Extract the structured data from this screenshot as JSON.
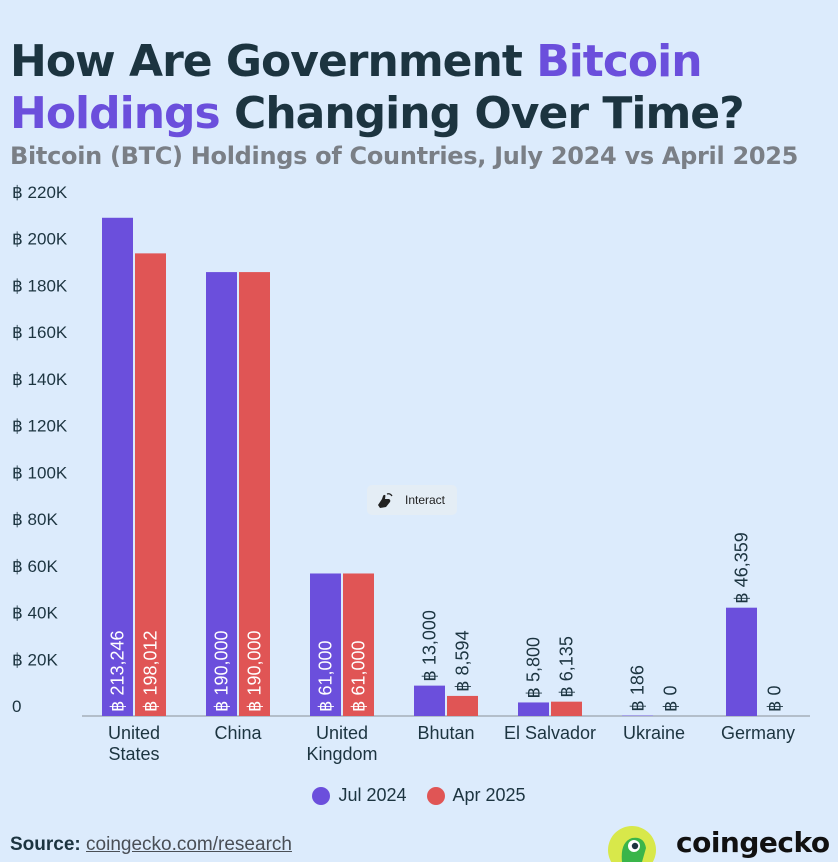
{
  "title": {
    "part1": "How Are Government ",
    "highlight1": "Bitcoin",
    "highlight2": "Holdings",
    "part2": " Changing Over Time?"
  },
  "subtitle": "Bitcoin (BTC) Holdings of Countries, July 2024 vs April 2025",
  "interact_label": "Interact",
  "source": {
    "label": "Source:",
    "link": "coingecko.com/research"
  },
  "logo": {
    "text": "coingecko",
    "icon": "gecko-logo-icon"
  },
  "colors": {
    "jul": "#6b4fdc",
    "apr": "#e05555",
    "text": "#1c3440",
    "accent": "#6b4fdc"
  },
  "chart_data": {
    "type": "bar",
    "title": "",
    "xlabel": "",
    "ylabel": "",
    "ylim": [
      0,
      220000
    ],
    "y_ticks": [
      "0",
      "฿ 20K",
      "฿ 40K",
      "฿ 60K",
      "฿ 80K",
      "฿ 100K",
      "฿ 120K",
      "฿ 140K",
      "฿ 160K",
      "฿ 180K",
      "฿ 200K",
      "฿ 220K"
    ],
    "y_tick_values": [
      0,
      20000,
      40000,
      60000,
      80000,
      100000,
      120000,
      140000,
      160000,
      180000,
      200000,
      220000
    ],
    "categories": [
      [
        "United",
        "States"
      ],
      [
        "China"
      ],
      [
        "United",
        "Kingdom"
      ],
      [
        "Bhutan"
      ],
      [
        "El Salvador"
      ],
      [
        "Ukraine"
      ],
      [
        "Germany"
      ]
    ],
    "series": [
      {
        "name": "Jul 2024",
        "values": [
          213246,
          190000,
          61000,
          13000,
          5800,
          186,
          46359
        ],
        "labels": [
          "฿ 213,246",
          "฿ 190,000",
          "฿ 61,000",
          "฿ 13,000",
          "฿ 5,800",
          "฿ 186",
          "฿ 46,359"
        ]
      },
      {
        "name": "Apr 2025",
        "values": [
          198012,
          190000,
          61000,
          8594,
          6135,
          0,
          0
        ],
        "labels": [
          "฿ 198,012",
          "฿ 190,000",
          "฿ 61,000",
          "฿ 8,594",
          "฿ 6,135",
          "฿ 0",
          "฿ 0"
        ]
      }
    ],
    "legend_position": "bottom",
    "grid": false
  }
}
